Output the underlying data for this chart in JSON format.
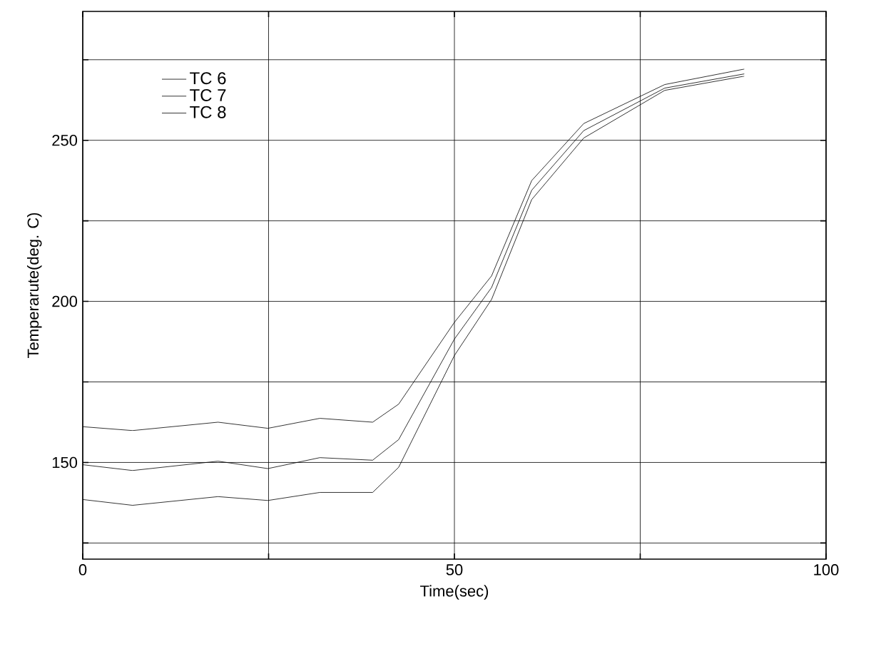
{
  "chart_data": {
    "type": "line",
    "xlabel": "Time(sec)",
    "ylabel": "Temperarute(deg. C)",
    "xlim": [
      0,
      100
    ],
    "ylim": [
      120,
      290
    ],
    "xticks": [
      0,
      {
        "value": 25,
        "label": null
      },
      50,
      {
        "value": 75,
        "label": null
      },
      100
    ],
    "yticks": [
      {
        "value": 125,
        "label": null
      },
      150,
      {
        "value": 175,
        "label": null
      },
      200,
      {
        "value": 225,
        "label": null
      },
      250,
      {
        "value": 275,
        "label": null
      }
    ],
    "grid": true,
    "legend": "top left",
    "marker": "none",
    "line_style": "solid",
    "series": [
      {
        "name": "TC 6",
        "color": "#000000",
        "x": [
          0,
          6.7,
          18.2,
          24.9,
          31.9,
          39,
          42.5,
          50,
          55,
          60.4,
          67.4,
          78.3,
          89
        ],
        "values": [
          161.1,
          159.9,
          162.5,
          160.6,
          163.7,
          162.5,
          168.1,
          193.5,
          207.9,
          237.5,
          255.2,
          267.3,
          272.1
        ]
      },
      {
        "name": "TC 7",
        "color": "#000000",
        "x": [
          0,
          6.7,
          18.2,
          24.9,
          31.9,
          39,
          42.5,
          50,
          55,
          60.4,
          67.4,
          78.3,
          89
        ],
        "values": [
          149.3,
          147.5,
          150.4,
          148.1,
          151.5,
          150.7,
          157.1,
          188.3,
          204.3,
          234.5,
          253,
          266.2,
          270.6
        ]
      },
      {
        "name": "TC 8",
        "color": "#000000",
        "x": [
          0,
          6.7,
          18.2,
          24.9,
          31.9,
          39,
          42.5,
          50,
          55,
          60.4,
          67.4,
          78.3,
          89
        ],
        "values": [
          138.5,
          136.7,
          139.4,
          138.2,
          140.7,
          140.7,
          148.5,
          183.2,
          200.6,
          231.6,
          250.7,
          265.5,
          269.9
        ]
      }
    ]
  }
}
